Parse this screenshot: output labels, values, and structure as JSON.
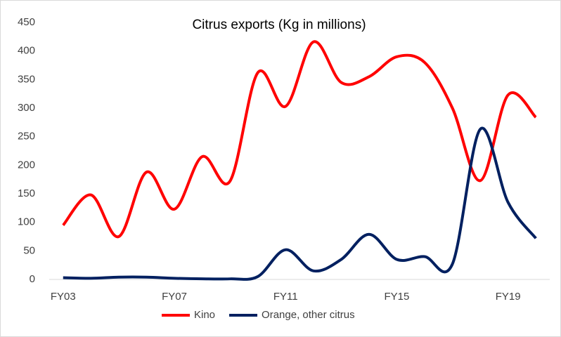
{
  "chart_data": {
    "type": "line",
    "title": "Citrus exports (Kg in millions)",
    "categories": [
      "FY03",
      null,
      null,
      null,
      "FY07",
      null,
      null,
      null,
      "FY11",
      null,
      null,
      null,
      "FY15",
      null,
      null,
      null,
      "FY19",
      null
    ],
    "series": [
      {
        "name": "Kino",
        "color": "#ff0000",
        "values": [
          95,
          148,
          75,
          188,
          123,
          215,
          172,
          362,
          303,
          416,
          345,
          355,
          390,
          380,
          300,
          173,
          323,
          284
        ]
      },
      {
        "name": "Orange, other citrus",
        "color": "#002060",
        "values": [
          3,
          2,
          4,
          4,
          2,
          1,
          1,
          5,
          52,
          15,
          35,
          79,
          35,
          40,
          27,
          263,
          135,
          72
        ]
      }
    ],
    "ylim": [
      0,
      450
    ],
    "yticks": [
      0,
      50,
      100,
      150,
      200,
      250,
      300,
      350,
      400,
      450
    ],
    "grid": false,
    "legend": "bottom"
  }
}
